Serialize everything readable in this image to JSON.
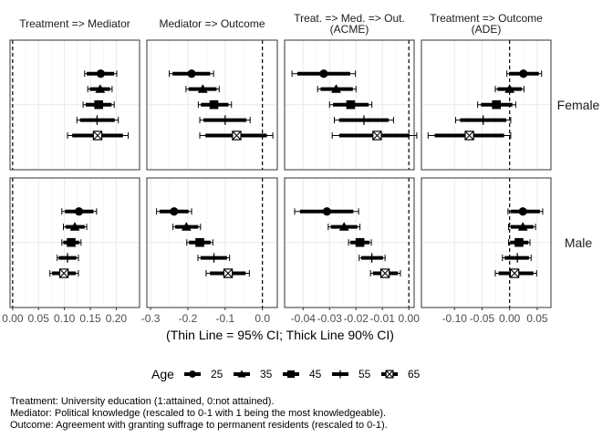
{
  "chart_data": {
    "type": "scatter",
    "description_style": "facetted coefficient plot with point estimates, 95% CI (thin line) and 90% CI (thick line)",
    "xlabel": "(Thin Line = 95% CI; Thick Line 90% CI)",
    "legend": {
      "title": "Age",
      "position": "bottom",
      "entries": [
        "25",
        "35",
        "45",
        "55",
        "65"
      ],
      "shapes": [
        "circle",
        "triangle",
        "square",
        "plus",
        "boxed-x"
      ]
    },
    "rows": [
      "Female",
      "Male"
    ],
    "columns": [
      {
        "title_lines": [
          "Treatment => Mediator"
        ],
        "xlim": [
          -0.005,
          0.245
        ],
        "ticks": [
          0.0,
          0.05,
          0.1,
          0.15,
          0.2
        ],
        "tick_labels": [
          "0.00",
          "0.05",
          "0.10",
          "0.15",
          "0.20"
        ],
        "ref": 0
      },
      {
        "title_lines": [
          "Mediator => Outcome"
        ],
        "xlim": [
          -0.31,
          0.04
        ],
        "ticks": [
          -0.3,
          -0.2,
          -0.1,
          0.0
        ],
        "tick_labels": [
          "-0.3",
          "-0.2",
          "-0.1",
          "0.0"
        ],
        "ref": 0
      },
      {
        "title_lines": [
          "Treat. => Med. => Out.",
          "(ACME)"
        ],
        "xlim": [
          -0.047,
          0.002
        ],
        "ticks": [
          -0.04,
          -0.03,
          -0.02,
          -0.01,
          0.0
        ],
        "tick_labels": [
          "-0.04",
          "-0.03",
          "-0.02",
          "-0.01",
          "0.00"
        ],
        "ref": 0
      },
      {
        "title_lines": [
          "Treatment => Outcome",
          "(ADE)"
        ],
        "xlim": [
          -0.16,
          0.075
        ],
        "ticks": [
          -0.1,
          -0.05,
          0.0,
          0.05
        ],
        "tick_labels": [
          "-0.10",
          "-0.05",
          "0.00",
          "0.05"
        ],
        "ref": 0
      }
    ],
    "estimates": {
      "Female": [
        [
          {
            "age": "25",
            "est": 0.17,
            "lo95": 0.139,
            "hi95": 0.201,
            "lo90": 0.143,
            "hi90": 0.196
          },
          {
            "age": "35",
            "est": 0.169,
            "lo95": 0.145,
            "hi95": 0.192,
            "lo90": 0.149,
            "hi90": 0.188
          },
          {
            "age": "45",
            "est": 0.166,
            "lo95": 0.136,
            "hi95": 0.196,
            "lo90": 0.141,
            "hi90": 0.191
          },
          {
            "age": "55",
            "est": 0.163,
            "lo95": 0.124,
            "hi95": 0.204,
            "lo90": 0.13,
            "hi90": 0.197
          },
          {
            "age": "65",
            "est": 0.164,
            "lo95": 0.106,
            "hi95": 0.223,
            "lo90": 0.115,
            "hi90": 0.213
          }
        ],
        [
          {
            "age": "25",
            "est": -0.19,
            "lo95": -0.25,
            "hi95": -0.131,
            "lo90": -0.241,
            "hi90": -0.14
          },
          {
            "age": "35",
            "est": -0.16,
            "lo95": -0.205,
            "hi95": -0.116,
            "lo90": -0.198,
            "hi90": -0.123
          },
          {
            "age": "45",
            "est": -0.13,
            "lo95": -0.172,
            "hi95": -0.083,
            "lo90": -0.165,
            "hi90": -0.091
          },
          {
            "age": "55",
            "est": -0.1,
            "lo95": -0.168,
            "hi95": -0.033,
            "lo90": -0.158,
            "hi90": -0.043
          },
          {
            "age": "65",
            "est": -0.069,
            "lo95": -0.168,
            "hi95": 0.028,
            "lo90": -0.153,
            "hi90": 0.012
          }
        ],
        [
          {
            "age": "25",
            "est": -0.0322,
            "lo95": -0.0442,
            "hi95": -0.0202,
            "lo90": -0.0422,
            "hi90": -0.0222
          },
          {
            "age": "35",
            "est": -0.0275,
            "lo95": -0.0345,
            "hi95": -0.02,
            "lo90": -0.0334,
            "hi90": -0.0212
          },
          {
            "age": "45",
            "est": -0.022,
            "lo95": -0.03,
            "hi95": -0.014,
            "lo90": -0.0287,
            "hi90": -0.0152
          },
          {
            "age": "55",
            "est": -0.017,
            "lo95": -0.0282,
            "hi95": -0.0058,
            "lo90": -0.0264,
            "hi90": -0.0076
          },
          {
            "age": "65",
            "est": -0.012,
            "lo95": -0.029,
            "hi95": 0.003,
            "lo90": -0.0263,
            "hi90": 0.0003
          }
        ],
        [
          {
            "age": "25",
            "est": 0.025,
            "lo95": -0.005,
            "hi95": 0.058,
            "lo90": 0.0,
            "hi90": 0.053
          },
          {
            "age": "35",
            "est": 0.0,
            "lo95": -0.026,
            "hi95": 0.026,
            "lo90": -0.022,
            "hi90": 0.022
          },
          {
            "age": "45",
            "est": -0.024,
            "lo95": -0.058,
            "hi95": 0.011,
            "lo90": -0.052,
            "hi90": 0.005
          },
          {
            "age": "55",
            "est": -0.048,
            "lo95": -0.098,
            "hi95": 0.002,
            "lo90": -0.09,
            "hi90": -0.006
          },
          {
            "age": "65",
            "est": -0.073,
            "lo95": -0.148,
            "hi95": 0.002,
            "lo90": -0.136,
            "hi90": -0.01
          }
        ]
      ],
      "Male": [
        [
          {
            "age": "25",
            "est": 0.128,
            "lo95": 0.095,
            "hi95": 0.162,
            "lo90": 0.101,
            "hi90": 0.156
          },
          {
            "age": "35",
            "est": 0.12,
            "lo95": 0.098,
            "hi95": 0.143,
            "lo90": 0.102,
            "hi90": 0.139
          },
          {
            "age": "45",
            "est": 0.113,
            "lo95": 0.095,
            "hi95": 0.132,
            "lo90": 0.098,
            "hi90": 0.129
          },
          {
            "age": "55",
            "est": 0.106,
            "lo95": 0.086,
            "hi95": 0.127,
            "lo90": 0.089,
            "hi90": 0.123
          },
          {
            "age": "65",
            "est": 0.099,
            "lo95": 0.072,
            "hi95": 0.127,
            "lo90": 0.076,
            "hi90": 0.122
          }
        ],
        [
          {
            "age": "25",
            "est": -0.237,
            "lo95": -0.284,
            "hi95": -0.19,
            "lo90": -0.276,
            "hi90": -0.198
          },
          {
            "age": "35",
            "est": -0.204,
            "lo95": -0.24,
            "hi95": -0.166,
            "lo90": -0.234,
            "hi90": -0.172
          },
          {
            "age": "45",
            "est": -0.168,
            "lo95": -0.203,
            "hi95": -0.133,
            "lo90": -0.197,
            "hi90": -0.139
          },
          {
            "age": "55",
            "est": -0.13,
            "lo95": -0.173,
            "hi95": -0.088,
            "lo90": -0.166,
            "hi90": -0.095
          },
          {
            "age": "65",
            "est": -0.092,
            "lo95": -0.151,
            "hi95": -0.035,
            "lo90": -0.141,
            "hi90": -0.045
          }
        ],
        [
          {
            "age": "25",
            "est": -0.031,
            "lo95": -0.0432,
            "hi95": -0.019,
            "lo90": -0.0412,
            "hi90": -0.021
          },
          {
            "age": "35",
            "est": -0.0245,
            "lo95": -0.0305,
            "hi95": -0.0185,
            "lo90": -0.0295,
            "hi90": -0.0195
          },
          {
            "age": "45",
            "est": -0.0185,
            "lo95": -0.0228,
            "hi95": -0.0142,
            "lo90": -0.0221,
            "hi90": -0.0149
          },
          {
            "age": "55",
            "est": -0.014,
            "lo95": -0.0188,
            "hi95": -0.009,
            "lo90": -0.018,
            "hi90": -0.0098
          },
          {
            "age": "65",
            "est": -0.009,
            "lo95": -0.0145,
            "hi95": -0.0032,
            "lo90": -0.0136,
            "hi90": -0.0041
          }
        ],
        [
          {
            "age": "25",
            "est": 0.024,
            "lo95": -0.003,
            "hi95": 0.06,
            "lo90": 0.002,
            "hi90": 0.055
          },
          {
            "age": "35",
            "est": 0.024,
            "lo95": -0.002,
            "hi95": 0.047,
            "lo90": 0.002,
            "hi90": 0.043
          },
          {
            "age": "45",
            "est": 0.017,
            "lo95": -0.002,
            "hi95": 0.037,
            "lo90": 0.001,
            "hi90": 0.034
          },
          {
            "age": "55",
            "est": 0.014,
            "lo95": -0.013,
            "hi95": 0.039,
            "lo90": -0.009,
            "hi90": 0.035
          },
          {
            "age": "65",
            "est": 0.009,
            "lo95": -0.026,
            "hi95": 0.049,
            "lo90": -0.02,
            "hi90": 0.043
          }
        ]
      ]
    },
    "caption": [
      "Treatment: University education (1:attained, 0:not attained).",
      "Mediator: Political knowledge (rescaled to 0-1 with 1 being the most knowledgeable).",
      "Outcome: Agreement with granting suffrage to permanent residents (rescaled to 0-1)."
    ]
  }
}
